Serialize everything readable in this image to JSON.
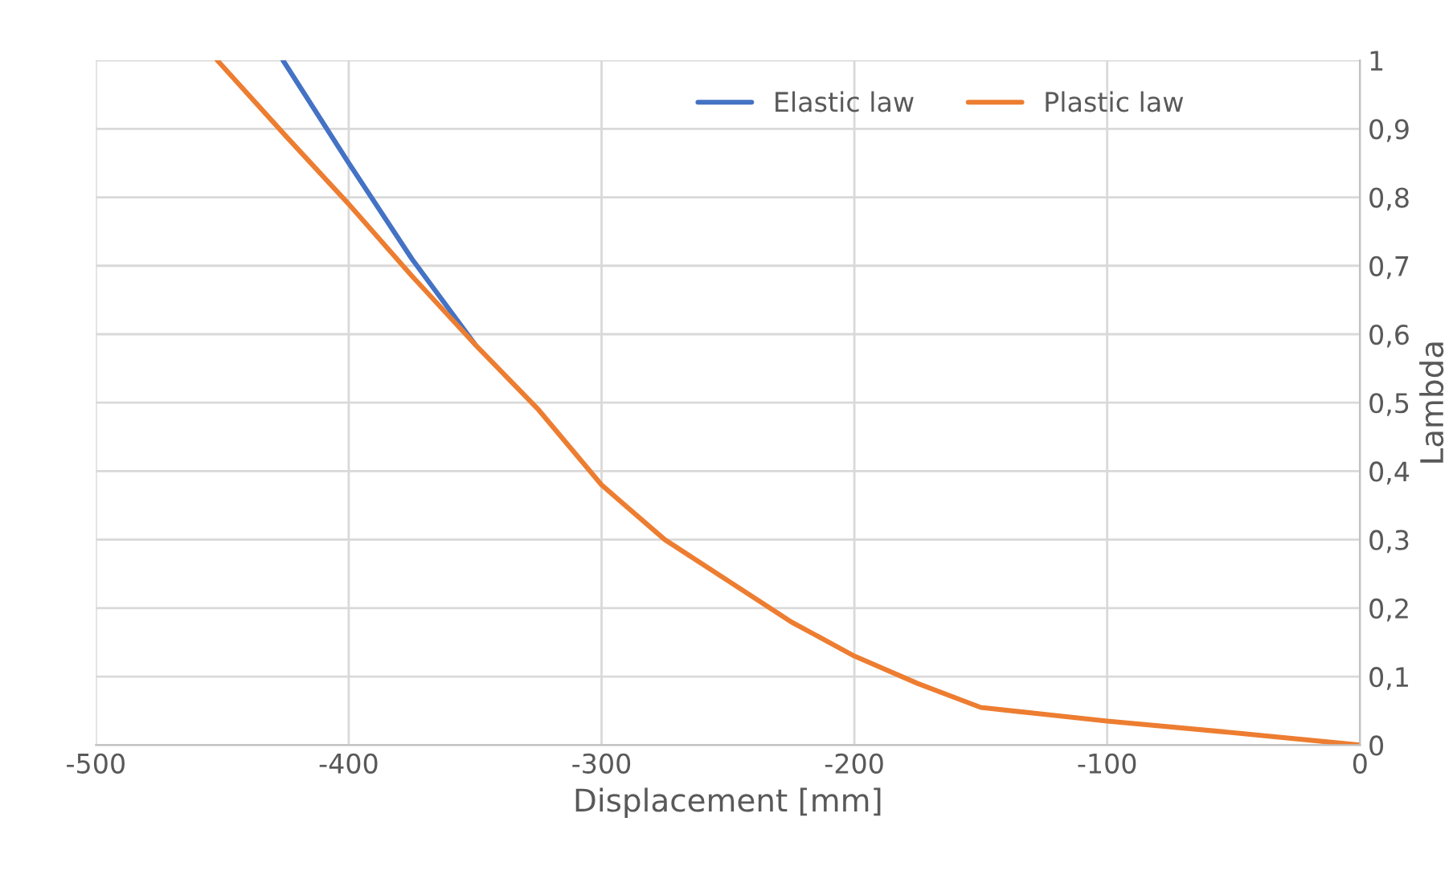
{
  "chart_data": {
    "type": "line",
    "xlabel": "Displacement [mm]",
    "ylabel": "Lambda",
    "xlim": [
      -500,
      0
    ],
    "xticks": [
      -500,
      -400,
      -300,
      -200,
      -100,
      0
    ],
    "ylim": [
      0,
      1
    ],
    "yticks": [
      {
        "value": 0,
        "label": "0"
      },
      {
        "value": 0.1,
        "label": "0,1"
      },
      {
        "value": 0.2,
        "label": "0,2"
      },
      {
        "value": 0.3,
        "label": "0,3"
      },
      {
        "value": 0.4,
        "label": "0,4"
      },
      {
        "value": 0.5,
        "label": "0,5"
      },
      {
        "value": 0.6,
        "label": "0,6"
      },
      {
        "value": 0.7,
        "label": "0,7"
      },
      {
        "value": 0.8,
        "label": "0,8"
      },
      {
        "value": 0.9,
        "label": "0,9"
      },
      {
        "value": 1,
        "label": "1"
      }
    ],
    "grid": true,
    "legend": "top right",
    "marker": "none",
    "line_style": "solid",
    "series": [
      {
        "name": "Elastic law",
        "color": "#4472c4",
        "x": [
          -426,
          -400,
          -375,
          -355,
          -350
        ],
        "values": [
          1.0,
          0.85,
          0.71,
          0.61,
          0.585
        ]
      },
      {
        "name": "Plastic law",
        "color": "#ed7d31",
        "x": [
          -452,
          -425,
          -400,
          -375,
          -355,
          -350,
          -325,
          -300,
          -275,
          -250,
          -225,
          -200,
          -175,
          -150,
          -125,
          -100,
          -50,
          0
        ],
        "values": [
          1.0,
          0.89,
          0.79,
          0.685,
          0.605,
          0.585,
          0.49,
          0.38,
          0.3,
          0.24,
          0.18,
          0.13,
          0.09,
          0.055,
          0.045,
          0.035,
          0.018,
          0
        ]
      }
    ]
  }
}
